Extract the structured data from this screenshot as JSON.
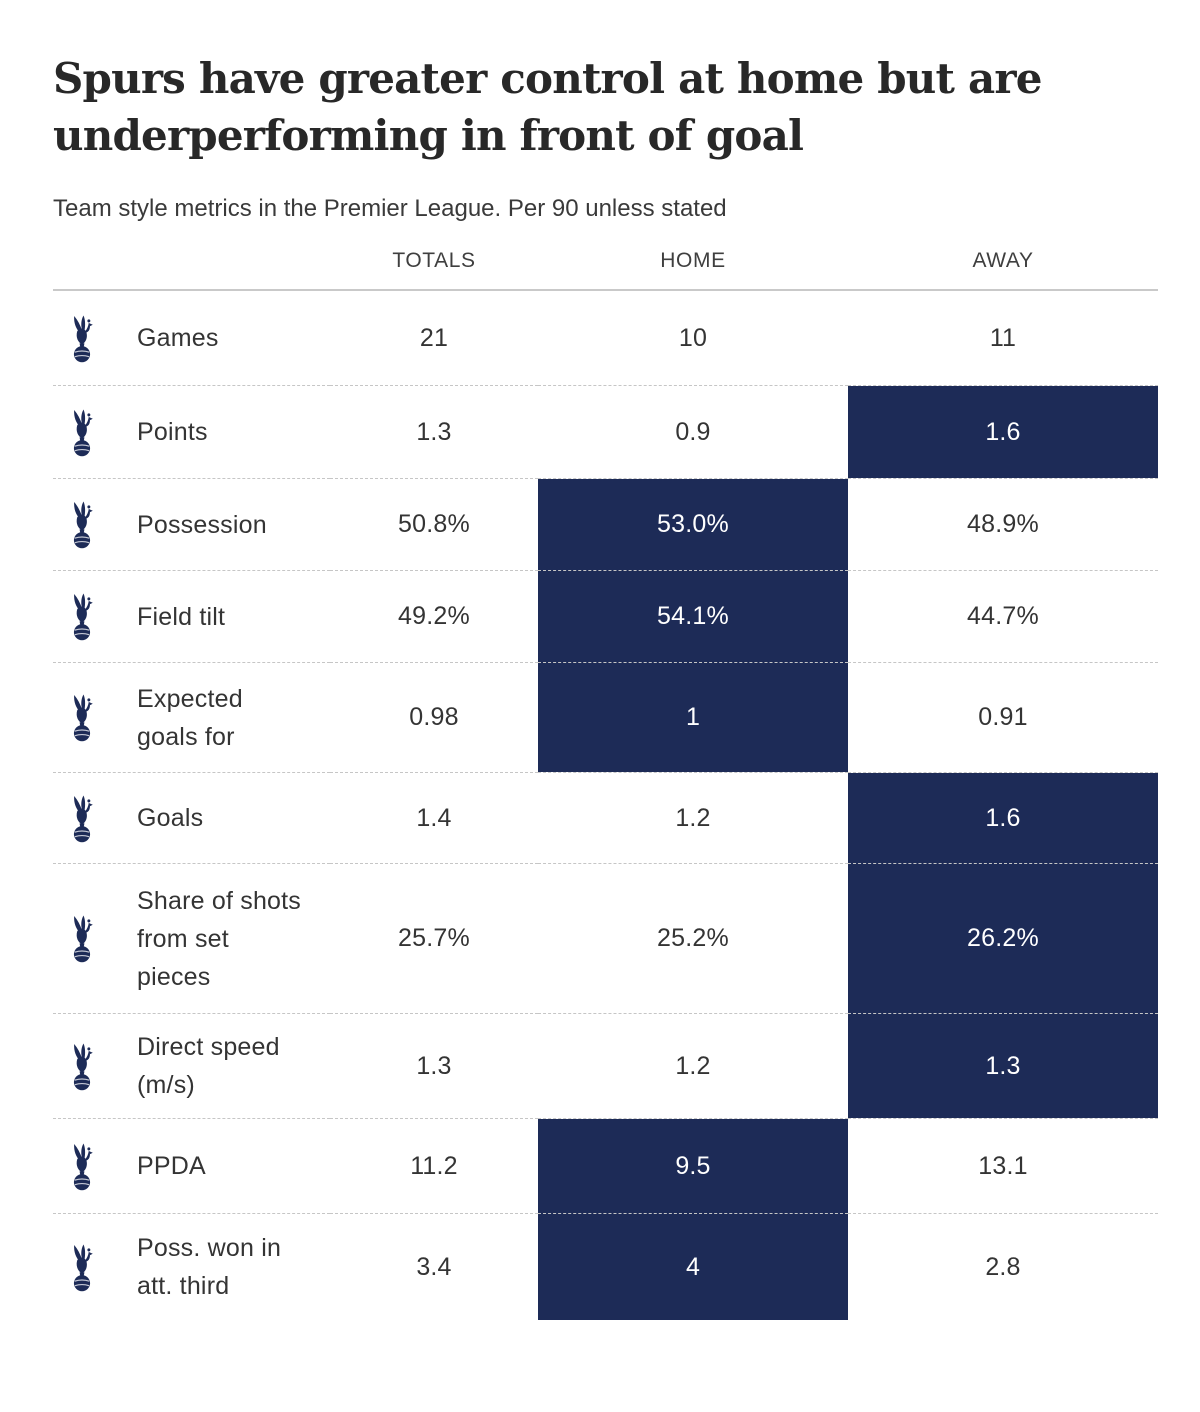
{
  "chart_data": {
    "type": "table",
    "title": "Spurs have greater control at home but are underperforming in front of goal",
    "title_lines": [
      "Spurs have greater control at home but are",
      "underperforming in front of goal"
    ],
    "subtitle": "Team style metrics in the Premier League. Per 90 unless stated",
    "columns": [
      "TOTALS",
      "HOME",
      "AWAY"
    ],
    "rows": [
      {
        "metric": "Games",
        "metric_display": "Games",
        "values": [
          "21",
          "10",
          "11"
        ],
        "highlight": null
      },
      {
        "metric": "Points",
        "metric_display": "Points",
        "values": [
          "1.3",
          "0.9",
          "1.6"
        ],
        "highlight": "AWAY"
      },
      {
        "metric": "Possession",
        "metric_display": "Possession",
        "values": [
          "50.8%",
          "53.0%",
          "48.9%"
        ],
        "highlight": "HOME"
      },
      {
        "metric": "Field tilt",
        "metric_display": "Field tilt",
        "values": [
          "49.2%",
          "54.1%",
          "44.7%"
        ],
        "highlight": "HOME"
      },
      {
        "metric": "Expected goals for",
        "metric_display": "Expected\ngoals for",
        "values": [
          "0.98",
          "1",
          "0.91"
        ],
        "highlight": "HOME"
      },
      {
        "metric": "Goals",
        "metric_display": "Goals",
        "values": [
          "1.4",
          "1.2",
          "1.6"
        ],
        "highlight": "AWAY"
      },
      {
        "metric": "Share of shots from set pieces",
        "metric_display": "Share of shots\nfrom set\npieces",
        "values": [
          "25.7%",
          "25.2%",
          "26.2%"
        ],
        "highlight": "AWAY"
      },
      {
        "metric": "Direct speed (m/s)",
        "metric_display": "Direct speed\n(m/s)",
        "values": [
          "1.3",
          "1.2",
          "1.3"
        ],
        "highlight": "AWAY"
      },
      {
        "metric": "PPDA",
        "metric_display": "PPDA",
        "values": [
          "11.2",
          "9.5",
          "13.1"
        ],
        "highlight": "HOME"
      },
      {
        "metric": "Poss. won in att. third",
        "metric_display": "Poss. won in\natt. third",
        "values": [
          "3.4",
          "4",
          "2.8"
        ],
        "highlight": "HOME"
      }
    ],
    "layout_hints": {
      "highlight_meaning": "better value between home and away",
      "row_separator": "dashed",
      "legend_position": "none"
    },
    "colors": {
      "highlight_navy": "#1d2b57",
      "crest_navy": "#1d2b57",
      "separator_grey": "#c6c6c6"
    },
    "icons": {
      "row_icon": "tottenham-hotspur-crest"
    }
  }
}
